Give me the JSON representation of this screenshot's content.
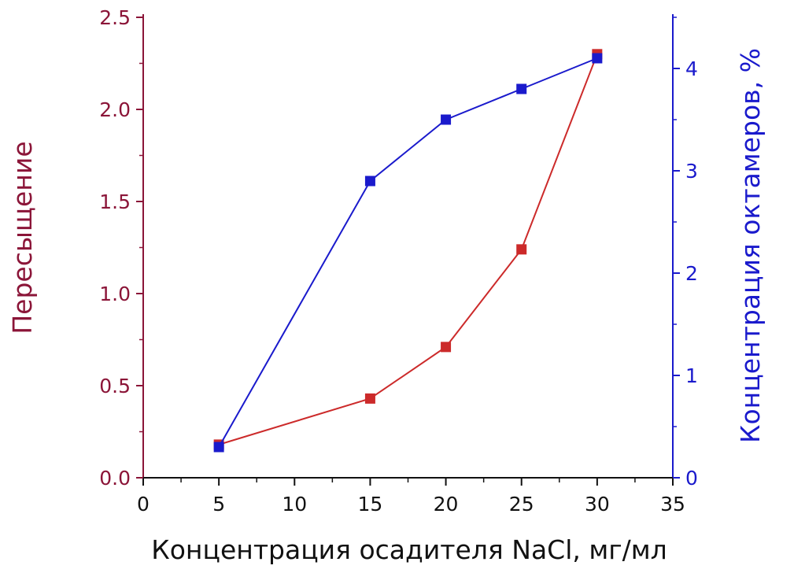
{
  "colors": {
    "left_axis": "#8b1538",
    "right_axis": "#1a1acc",
    "series_red": "#cc2a2a",
    "series_blue": "#1a1acc",
    "x_axis": "#111111"
  },
  "chart_data": {
    "type": "line",
    "xlabel": "Концентрация осадителя NaCl, мг/мл",
    "ylabel_left": "Пересыщение",
    "ylabel_right": "Концентрация октамеров, %",
    "xlim": [
      0,
      35
    ],
    "ylim_left": [
      0,
      2.5
    ],
    "ylim_right": [
      0,
      4.5
    ],
    "x_ticks": [
      "0",
      "5",
      "10",
      "15",
      "20",
      "25",
      "30",
      "35"
    ],
    "y_left_ticks": [
      "0.0",
      "0.5",
      "1.0",
      "1.5",
      "2.0",
      "2.5"
    ],
    "y_right_ticks": [
      "0",
      "1",
      "2",
      "3",
      "4"
    ],
    "grid": false,
    "series": [
      {
        "axis": "left",
        "x": [
          5,
          15,
          20,
          25,
          30
        ],
        "values": [
          0.18,
          0.43,
          0.71,
          1.24,
          2.3
        ]
      },
      {
        "axis": "right",
        "x": [
          5,
          15,
          20,
          25,
          30
        ],
        "values": [
          0.3,
          2.9,
          3.5,
          3.8,
          4.1
        ]
      }
    ]
  }
}
